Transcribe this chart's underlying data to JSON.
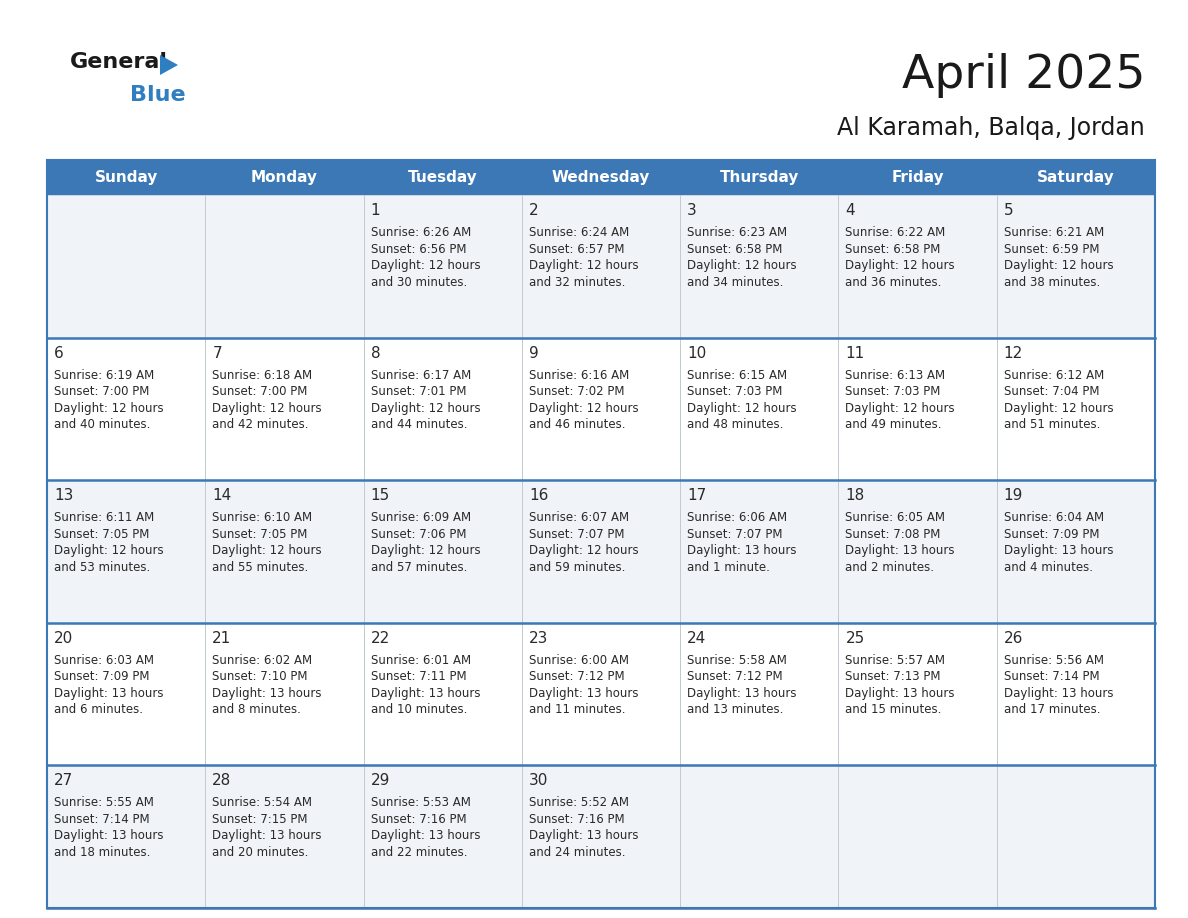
{
  "title": "April 2025",
  "subtitle": "Al Karamah, Balqa, Jordan",
  "days_of_week": [
    "Sunday",
    "Monday",
    "Tuesday",
    "Wednesday",
    "Thursday",
    "Friday",
    "Saturday"
  ],
  "header_bg": "#3b78b5",
  "header_text": "#ffffff",
  "cell_bg_odd": "#f0f3f7",
  "cell_bg_even": "#ffffff",
  "border_color": "#3b78b5",
  "row_line_color": "#3b78b5",
  "cell_line_color": "#c0c8d0",
  "text_color": "#2a2a2a",
  "title_color": "#1a1a1a",
  "subtitle_color": "#1a1a1a",
  "general_color": "#1a1a1a",
  "blue_color": "#2e7ec0",
  "calendar_data": [
    [
      {
        "day": null,
        "sunrise": null,
        "sunset": null,
        "daylight": null
      },
      {
        "day": null,
        "sunrise": null,
        "sunset": null,
        "daylight": null
      },
      {
        "day": 1,
        "sunrise": "6:26 AM",
        "sunset": "6:56 PM",
        "daylight": "12 hours",
        "daylight2": "and 30 minutes."
      },
      {
        "day": 2,
        "sunrise": "6:24 AM",
        "sunset": "6:57 PM",
        "daylight": "12 hours",
        "daylight2": "and 32 minutes."
      },
      {
        "day": 3,
        "sunrise": "6:23 AM",
        "sunset": "6:58 PM",
        "daylight": "12 hours",
        "daylight2": "and 34 minutes."
      },
      {
        "day": 4,
        "sunrise": "6:22 AM",
        "sunset": "6:58 PM",
        "daylight": "12 hours",
        "daylight2": "and 36 minutes."
      },
      {
        "day": 5,
        "sunrise": "6:21 AM",
        "sunset": "6:59 PM",
        "daylight": "12 hours",
        "daylight2": "and 38 minutes."
      }
    ],
    [
      {
        "day": 6,
        "sunrise": "6:19 AM",
        "sunset": "7:00 PM",
        "daylight": "12 hours",
        "daylight2": "and 40 minutes."
      },
      {
        "day": 7,
        "sunrise": "6:18 AM",
        "sunset": "7:00 PM",
        "daylight": "12 hours",
        "daylight2": "and 42 minutes."
      },
      {
        "day": 8,
        "sunrise": "6:17 AM",
        "sunset": "7:01 PM",
        "daylight": "12 hours",
        "daylight2": "and 44 minutes."
      },
      {
        "day": 9,
        "sunrise": "6:16 AM",
        "sunset": "7:02 PM",
        "daylight": "12 hours",
        "daylight2": "and 46 minutes."
      },
      {
        "day": 10,
        "sunrise": "6:15 AM",
        "sunset": "7:03 PM",
        "daylight": "12 hours",
        "daylight2": "and 48 minutes."
      },
      {
        "day": 11,
        "sunrise": "6:13 AM",
        "sunset": "7:03 PM",
        "daylight": "12 hours",
        "daylight2": "and 49 minutes."
      },
      {
        "day": 12,
        "sunrise": "6:12 AM",
        "sunset": "7:04 PM",
        "daylight": "12 hours",
        "daylight2": "and 51 minutes."
      }
    ],
    [
      {
        "day": 13,
        "sunrise": "6:11 AM",
        "sunset": "7:05 PM",
        "daylight": "12 hours",
        "daylight2": "and 53 minutes."
      },
      {
        "day": 14,
        "sunrise": "6:10 AM",
        "sunset": "7:05 PM",
        "daylight": "12 hours",
        "daylight2": "and 55 minutes."
      },
      {
        "day": 15,
        "sunrise": "6:09 AM",
        "sunset": "7:06 PM",
        "daylight": "12 hours",
        "daylight2": "and 57 minutes."
      },
      {
        "day": 16,
        "sunrise": "6:07 AM",
        "sunset": "7:07 PM",
        "daylight": "12 hours",
        "daylight2": "and 59 minutes."
      },
      {
        "day": 17,
        "sunrise": "6:06 AM",
        "sunset": "7:07 PM",
        "daylight": "13 hours",
        "daylight2": "and 1 minute."
      },
      {
        "day": 18,
        "sunrise": "6:05 AM",
        "sunset": "7:08 PM",
        "daylight": "13 hours",
        "daylight2": "and 2 minutes."
      },
      {
        "day": 19,
        "sunrise": "6:04 AM",
        "sunset": "7:09 PM",
        "daylight": "13 hours",
        "daylight2": "and 4 minutes."
      }
    ],
    [
      {
        "day": 20,
        "sunrise": "6:03 AM",
        "sunset": "7:09 PM",
        "daylight": "13 hours",
        "daylight2": "and 6 minutes."
      },
      {
        "day": 21,
        "sunrise": "6:02 AM",
        "sunset": "7:10 PM",
        "daylight": "13 hours",
        "daylight2": "and 8 minutes."
      },
      {
        "day": 22,
        "sunrise": "6:01 AM",
        "sunset": "7:11 PM",
        "daylight": "13 hours",
        "daylight2": "and 10 minutes."
      },
      {
        "day": 23,
        "sunrise": "6:00 AM",
        "sunset": "7:12 PM",
        "daylight": "13 hours",
        "daylight2": "and 11 minutes."
      },
      {
        "day": 24,
        "sunrise": "5:58 AM",
        "sunset": "7:12 PM",
        "daylight": "13 hours",
        "daylight2": "and 13 minutes."
      },
      {
        "day": 25,
        "sunrise": "5:57 AM",
        "sunset": "7:13 PM",
        "daylight": "13 hours",
        "daylight2": "and 15 minutes."
      },
      {
        "day": 26,
        "sunrise": "5:56 AM",
        "sunset": "7:14 PM",
        "daylight": "13 hours",
        "daylight2": "and 17 minutes."
      }
    ],
    [
      {
        "day": 27,
        "sunrise": "5:55 AM",
        "sunset": "7:14 PM",
        "daylight": "13 hours",
        "daylight2": "and 18 minutes."
      },
      {
        "day": 28,
        "sunrise": "5:54 AM",
        "sunset": "7:15 PM",
        "daylight": "13 hours",
        "daylight2": "and 20 minutes."
      },
      {
        "day": 29,
        "sunrise": "5:53 AM",
        "sunset": "7:16 PM",
        "daylight": "13 hours",
        "daylight2": "and 22 minutes."
      },
      {
        "day": 30,
        "sunrise": "5:52 AM",
        "sunset": "7:16 PM",
        "daylight": "13 hours",
        "daylight2": "and 24 minutes."
      },
      {
        "day": null,
        "sunrise": null,
        "sunset": null,
        "daylight": null,
        "daylight2": null
      },
      {
        "day": null,
        "sunrise": null,
        "sunset": null,
        "daylight": null,
        "daylight2": null
      },
      {
        "day": null,
        "sunrise": null,
        "sunset": null,
        "daylight": null,
        "daylight2": null
      }
    ]
  ]
}
